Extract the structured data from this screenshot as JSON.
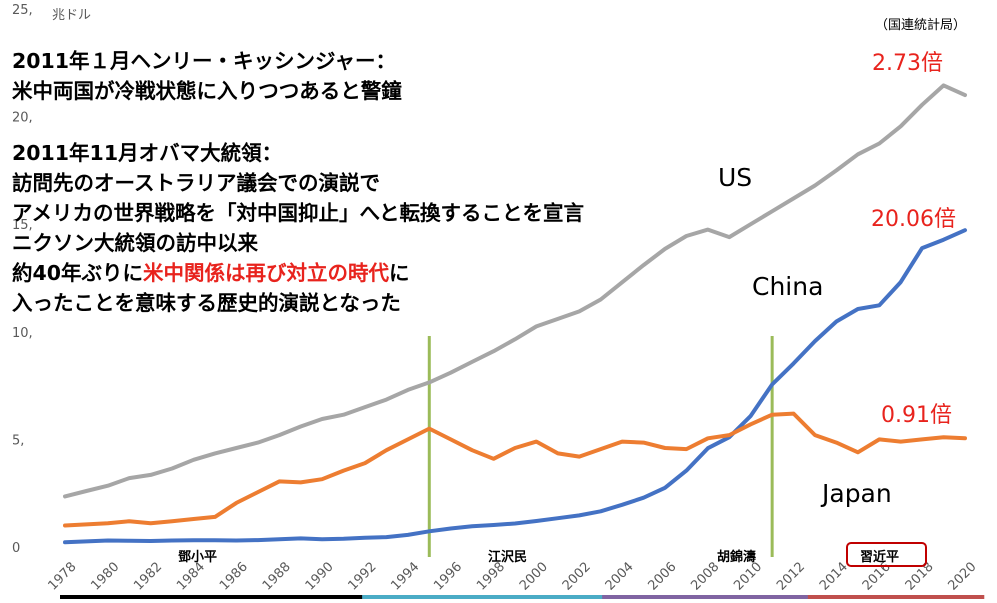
{
  "chart_data": {
    "type": "line",
    "y_unit": "兆ドル",
    "ylim": [
      0,
      25
    ],
    "y_ticks": [
      "0",
      "5,",
      "10,",
      "15,",
      "20,",
      "25,"
    ],
    "x_ticks": [
      "1978",
      "1980",
      "1982",
      "1984",
      "1986",
      "1988",
      "1990",
      "1992",
      "1994",
      "1996",
      "1998",
      "2000",
      "2002",
      "2004",
      "2006",
      "2008",
      "2010",
      "2012",
      "2014",
      "2016",
      "2018",
      "2020"
    ],
    "x": [
      1978,
      1979,
      1980,
      1981,
      1982,
      1983,
      1984,
      1985,
      1986,
      1987,
      1988,
      1989,
      1990,
      1991,
      1992,
      1993,
      1994,
      1995,
      1996,
      1997,
      1998,
      1999,
      2000,
      2001,
      2002,
      2003,
      2004,
      2005,
      2006,
      2007,
      2008,
      2009,
      2010,
      2011,
      2012,
      2013,
      2014,
      2015,
      2016,
      2017,
      2018,
      2019,
      2020
    ],
    "grid": false,
    "source": "（国連統計局）",
    "series": [
      {
        "name": "US",
        "color": "#a6a6a6",
        "values": [
          2.35,
          2.6,
          2.85,
          3.2,
          3.35,
          3.65,
          4.05,
          4.35,
          4.6,
          4.85,
          5.2,
          5.6,
          5.95,
          6.15,
          6.5,
          6.85,
          7.3,
          7.65,
          8.1,
          8.6,
          9.1,
          9.65,
          10.25,
          10.6,
          10.95,
          11.5,
          12.3,
          13.1,
          13.85,
          14.45,
          14.75,
          14.4,
          15.0,
          15.6,
          16.2,
          16.8,
          17.5,
          18.25,
          18.75,
          19.55,
          20.55,
          21.45,
          21.0
        ]
      },
      {
        "name": "China",
        "color": "#4472c4",
        "values": [
          0.22,
          0.26,
          0.3,
          0.29,
          0.28,
          0.3,
          0.31,
          0.31,
          0.3,
          0.32,
          0.36,
          0.4,
          0.36,
          0.38,
          0.43,
          0.46,
          0.56,
          0.73,
          0.86,
          0.96,
          1.02,
          1.09,
          1.21,
          1.34,
          1.47,
          1.66,
          1.96,
          2.29,
          2.75,
          3.55,
          4.59,
          5.1,
          6.09,
          7.55,
          8.53,
          9.57,
          10.48,
          11.06,
          11.23,
          12.31,
          13.89,
          14.28,
          14.72
        ]
      },
      {
        "name": "Japan",
        "color": "#ed7d31",
        "values": [
          1.0,
          1.05,
          1.1,
          1.2,
          1.1,
          1.2,
          1.3,
          1.4,
          2.05,
          2.55,
          3.05,
          3.0,
          3.15,
          3.55,
          3.9,
          4.5,
          5.0,
          5.5,
          5.0,
          4.5,
          4.1,
          4.6,
          4.9,
          4.35,
          4.2,
          4.55,
          4.9,
          4.85,
          4.6,
          4.55,
          5.05,
          5.2,
          5.7,
          6.15,
          6.2,
          5.2,
          4.85,
          4.4,
          5.0,
          4.9,
          5.0,
          5.1,
          5.05
        ]
      }
    ],
    "vlines": [
      1995,
      2011
    ],
    "ratio_labels": {
      "us": "2.73倍",
      "china": "20.06倍",
      "japan": "0.91倍"
    },
    "leaders": [
      "鄧小平",
      "江沢民",
      "胡錦濤",
      "習近平"
    ],
    "era_colors": [
      "#000000",
      "#4bacc6",
      "#8064a2",
      "#c0504d"
    ]
  },
  "annotation": {
    "block1": [
      "2011年１月ヘンリー・キッシンジャー：",
      "米中両国が冷戦状態に入りつつあると警鐘"
    ],
    "block2_line1": "2011年11月オバマ大統領：",
    "block2_line2": "訪問先のオーストラリア議会での演説で",
    "block2_line3": "アメリカの世界戦略を「対中国抑止」へと転換することを宣言",
    "block2_line4": "ニクソン大統領の訪中以来",
    "block2_line5_pre": "約40年ぶりに",
    "block2_line5_red": "米中関係は再び対立の時代",
    "block2_line5_post": "に",
    "block2_line6": "入ったことを意味する歴史的演説となった"
  }
}
